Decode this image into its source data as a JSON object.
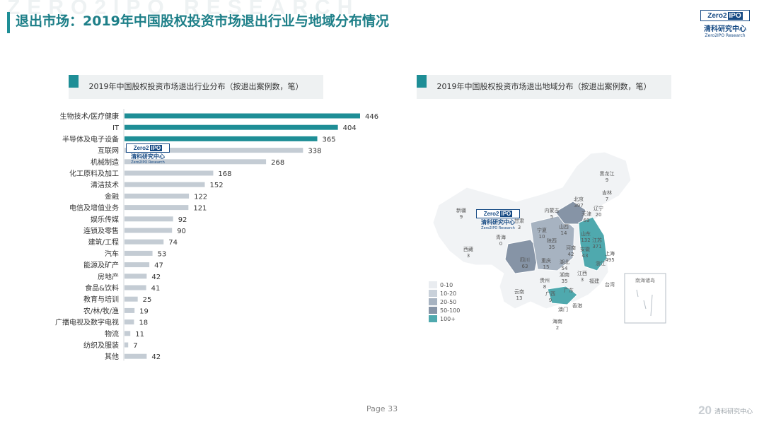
{
  "header": {
    "watermark": "ZERO2IPO RESEARCH",
    "title": "退出市场：2019年中国股权投资市场退出行业与地域分布情况"
  },
  "logo": {
    "zero": "Zero",
    "two": "2",
    "ipo": "IPO",
    "name_cn": "清科研究中心",
    "name_en": "Zero2IPO Research"
  },
  "chart_data": [
    {
      "type": "bar",
      "orientation": "horizontal",
      "title": "2019年中国股权投资市场退出行业分布（按退出案例数，笔）",
      "categories": [
        "生物技术/医疗健康",
        "IT",
        "半导体及电子设备",
        "互联网",
        "机械制造",
        "化工原料及加工",
        "清洁技术",
        "金融",
        "电信及增值业务",
        "娱乐传媒",
        "连锁及零售",
        "建筑/工程",
        "汽车",
        "能源及矿产",
        "房地产",
        "食品&饮料",
        "教育与培训",
        "农/林/牧/渔",
        "广播电视及数字电视",
        "物流",
        "纺织及服装",
        "其他"
      ],
      "values": [
        446,
        404,
        365,
        338,
        268,
        168,
        152,
        122,
        121,
        92,
        90,
        74,
        53,
        47,
        42,
        41,
        25,
        19,
        18,
        11,
        7,
        42
      ],
      "bar_colors": [
        "#1e8e96",
        "#1e8e96",
        "#1e8e96",
        "#c4ccd4",
        "#c4ccd4",
        "#c4ccd4",
        "#c4ccd4",
        "#c4ccd4",
        "#c4ccd4",
        "#c4ccd4",
        "#c4ccd4",
        "#c4ccd4",
        "#c4ccd4",
        "#c4ccd4",
        "#c4ccd4",
        "#c4ccd4",
        "#c4ccd4",
        "#c4ccd4",
        "#c4ccd4",
        "#c4ccd4",
        "#c4ccd4",
        "#c4ccd4"
      ]
    },
    {
      "type": "choropleth-map",
      "title": "2019年中国股权投资市场退出地域分布（按退出案例数，笔）",
      "regions": [
        {
          "name": "黑龙江",
          "value": "9"
        },
        {
          "name": "吉林",
          "value": "7"
        },
        {
          "name": "辽宁",
          "value": "20"
        },
        {
          "name": "北京",
          "value": "397"
        },
        {
          "name": "天津",
          "value": "69"
        },
        {
          "name": "内蒙古",
          "value": "5"
        },
        {
          "name": "山西",
          "value": "14"
        },
        {
          "name": "宁夏",
          "value": "10"
        },
        {
          "name": "甘肃",
          "value": "3"
        },
        {
          "name": "新疆",
          "value": "9"
        },
        {
          "name": "青海",
          "value": "0"
        },
        {
          "name": "西藏",
          "value": "3"
        },
        {
          "name": "陕西",
          "value": "35"
        },
        {
          "name": "山东",
          "value": "132"
        },
        {
          "name": "河南",
          "value": "42"
        },
        {
          "name": "江苏",
          "value": "371"
        },
        {
          "name": "安徽",
          "value": "43"
        },
        {
          "name": "上海",
          "value": "495"
        },
        {
          "name": "浙江",
          "value": ""
        },
        {
          "name": "四川",
          "value": "63"
        },
        {
          "name": "重庆",
          "value": "15"
        },
        {
          "name": "湖北",
          "value": "54"
        },
        {
          "name": "湖南",
          "value": "35"
        },
        {
          "name": "江西",
          "value": "3"
        },
        {
          "name": "福建",
          "value": ""
        },
        {
          "name": "贵州",
          "value": "8"
        },
        {
          "name": "云南",
          "value": "13"
        },
        {
          "name": "广西",
          "value": "9"
        },
        {
          "name": "广东",
          "value": ""
        },
        {
          "name": "香港",
          "value": ""
        },
        {
          "name": "澳门",
          "value": ""
        },
        {
          "name": "台湾",
          "value": ""
        },
        {
          "name": "海南",
          "value": "2"
        }
      ],
      "legend": [
        {
          "label": "0-10",
          "color": "#e9ecf0"
        },
        {
          "label": "10-20",
          "color": "#c9d1da"
        },
        {
          "label": "20-50",
          "color": "#a7b3c1"
        },
        {
          "label": "50-100",
          "color": "#8694a6"
        },
        {
          "label": "100+",
          "color": "#4fa9ae"
        }
      ],
      "inset_label": "南海诸岛"
    }
  ],
  "page_label": "Page 33",
  "footer": {
    "anniversary": "20",
    "brand": "清科研究中心"
  }
}
